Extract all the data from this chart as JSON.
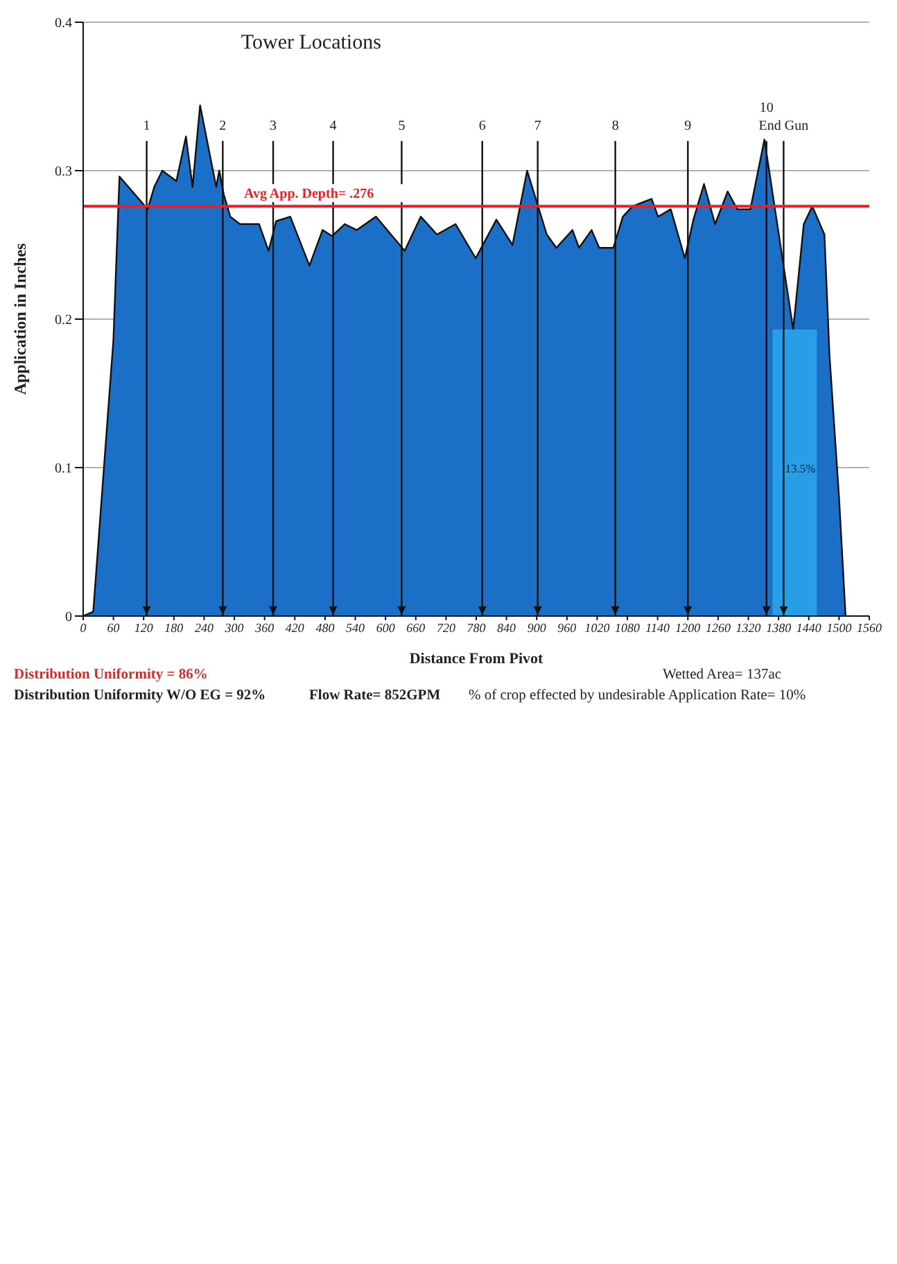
{
  "chart_data": {
    "type": "area",
    "xlabel": "Distance From Pivot",
    "ylabel": "Application in Inches",
    "xlim": [
      0,
      1560
    ],
    "xticks": [
      0,
      60,
      120,
      180,
      240,
      300,
      360,
      420,
      480,
      540,
      600,
      660,
      720,
      780,
      840,
      900,
      960,
      1020,
      1080,
      1140,
      1200,
      1260,
      1320,
      1380,
      1440,
      1500,
      1560
    ],
    "ylim": [
      0,
      0.4
    ],
    "yticks": [
      0,
      0.1,
      0.2,
      0.3,
      0.4
    ],
    "grid": "y",
    "series": [
      {
        "color": "#1c6fc6",
        "x": [
          0,
          20,
          60,
          72,
          128,
          141,
          157,
          185,
          204,
          217,
          232,
          264,
          270,
          279,
          292,
          311,
          349,
          368,
          383,
          411,
          449,
          475,
          494,
          519,
          543,
          581,
          638,
          670,
          702,
          739,
          779,
          820,
          852,
          881,
          920,
          939,
          971,
          984,
          1009,
          1024,
          1052,
          1071,
          1090,
          1128,
          1141,
          1166,
          1194,
          1211,
          1232,
          1254,
          1279,
          1298,
          1324,
          1352,
          1409,
          1430,
          1447,
          1471,
          1481,
          1500,
          1513
        ],
        "values": [
          0,
          0.003,
          0.186,
          0.296,
          0.274,
          0.289,
          0.3,
          0.293,
          0.323,
          0.289,
          0.344,
          0.289,
          0.3,
          0.284,
          0.269,
          0.264,
          0.264,
          0.246,
          0.266,
          0.269,
          0.236,
          0.26,
          0.256,
          0.264,
          0.26,
          0.269,
          0.246,
          0.269,
          0.257,
          0.264,
          0.241,
          0.267,
          0.25,
          0.3,
          0.257,
          0.248,
          0.26,
          0.248,
          0.26,
          0.248,
          0.248,
          0.269,
          0.276,
          0.281,
          0.269,
          0.274,
          0.241,
          0.267,
          0.291,
          0.264,
          0.286,
          0.274,
          0.274,
          0.321,
          0.193,
          0.264,
          0.276,
          0.257,
          0.176,
          0.08,
          0
        ]
      }
    ],
    "ref_lines": [
      {
        "axis": "y",
        "value": 0.276,
        "label": "Avg App. Depth= .276",
        "color": "#e8202a"
      },
      {
        "axis": "x",
        "value": 126,
        "color": "#111111"
      },
      {
        "axis": "x",
        "value": 277,
        "color": "#111111"
      },
      {
        "axis": "x",
        "value": 377,
        "color": "#111111"
      },
      {
        "axis": "x",
        "value": 496,
        "color": "#111111"
      },
      {
        "axis": "x",
        "value": 632,
        "color": "#111111"
      },
      {
        "axis": "x",
        "value": 792,
        "color": "#111111"
      },
      {
        "axis": "x",
        "value": 902,
        "color": "#111111"
      },
      {
        "axis": "x",
        "value": 1056,
        "color": "#111111"
      },
      {
        "axis": "x",
        "value": 1200,
        "color": "#111111"
      },
      {
        "axis": "x",
        "value": 1356,
        "color": "#111111"
      },
      {
        "axis": "x",
        "value": 1390,
        "color": "#111111"
      }
    ],
    "bands": [
      {
        "axis": "x",
        "from": 1368,
        "to": 1456,
        "label": "13.5%",
        "color": "#2aa3ea"
      }
    ],
    "annotations": [
      "Tower Locations",
      "Distribution Uniformity = 86%",
      "Distribution Uniformity W/O EG = 92%",
      "Flow Rate= 852GPM",
      "Wetted Area= 137ac",
      "% of crop effected by undesirable Application Rate= 10%",
      "1",
      "2",
      "3",
      "4",
      "5",
      "6",
      "7",
      "8",
      "9",
      "10",
      "End Gun"
    ]
  }
}
